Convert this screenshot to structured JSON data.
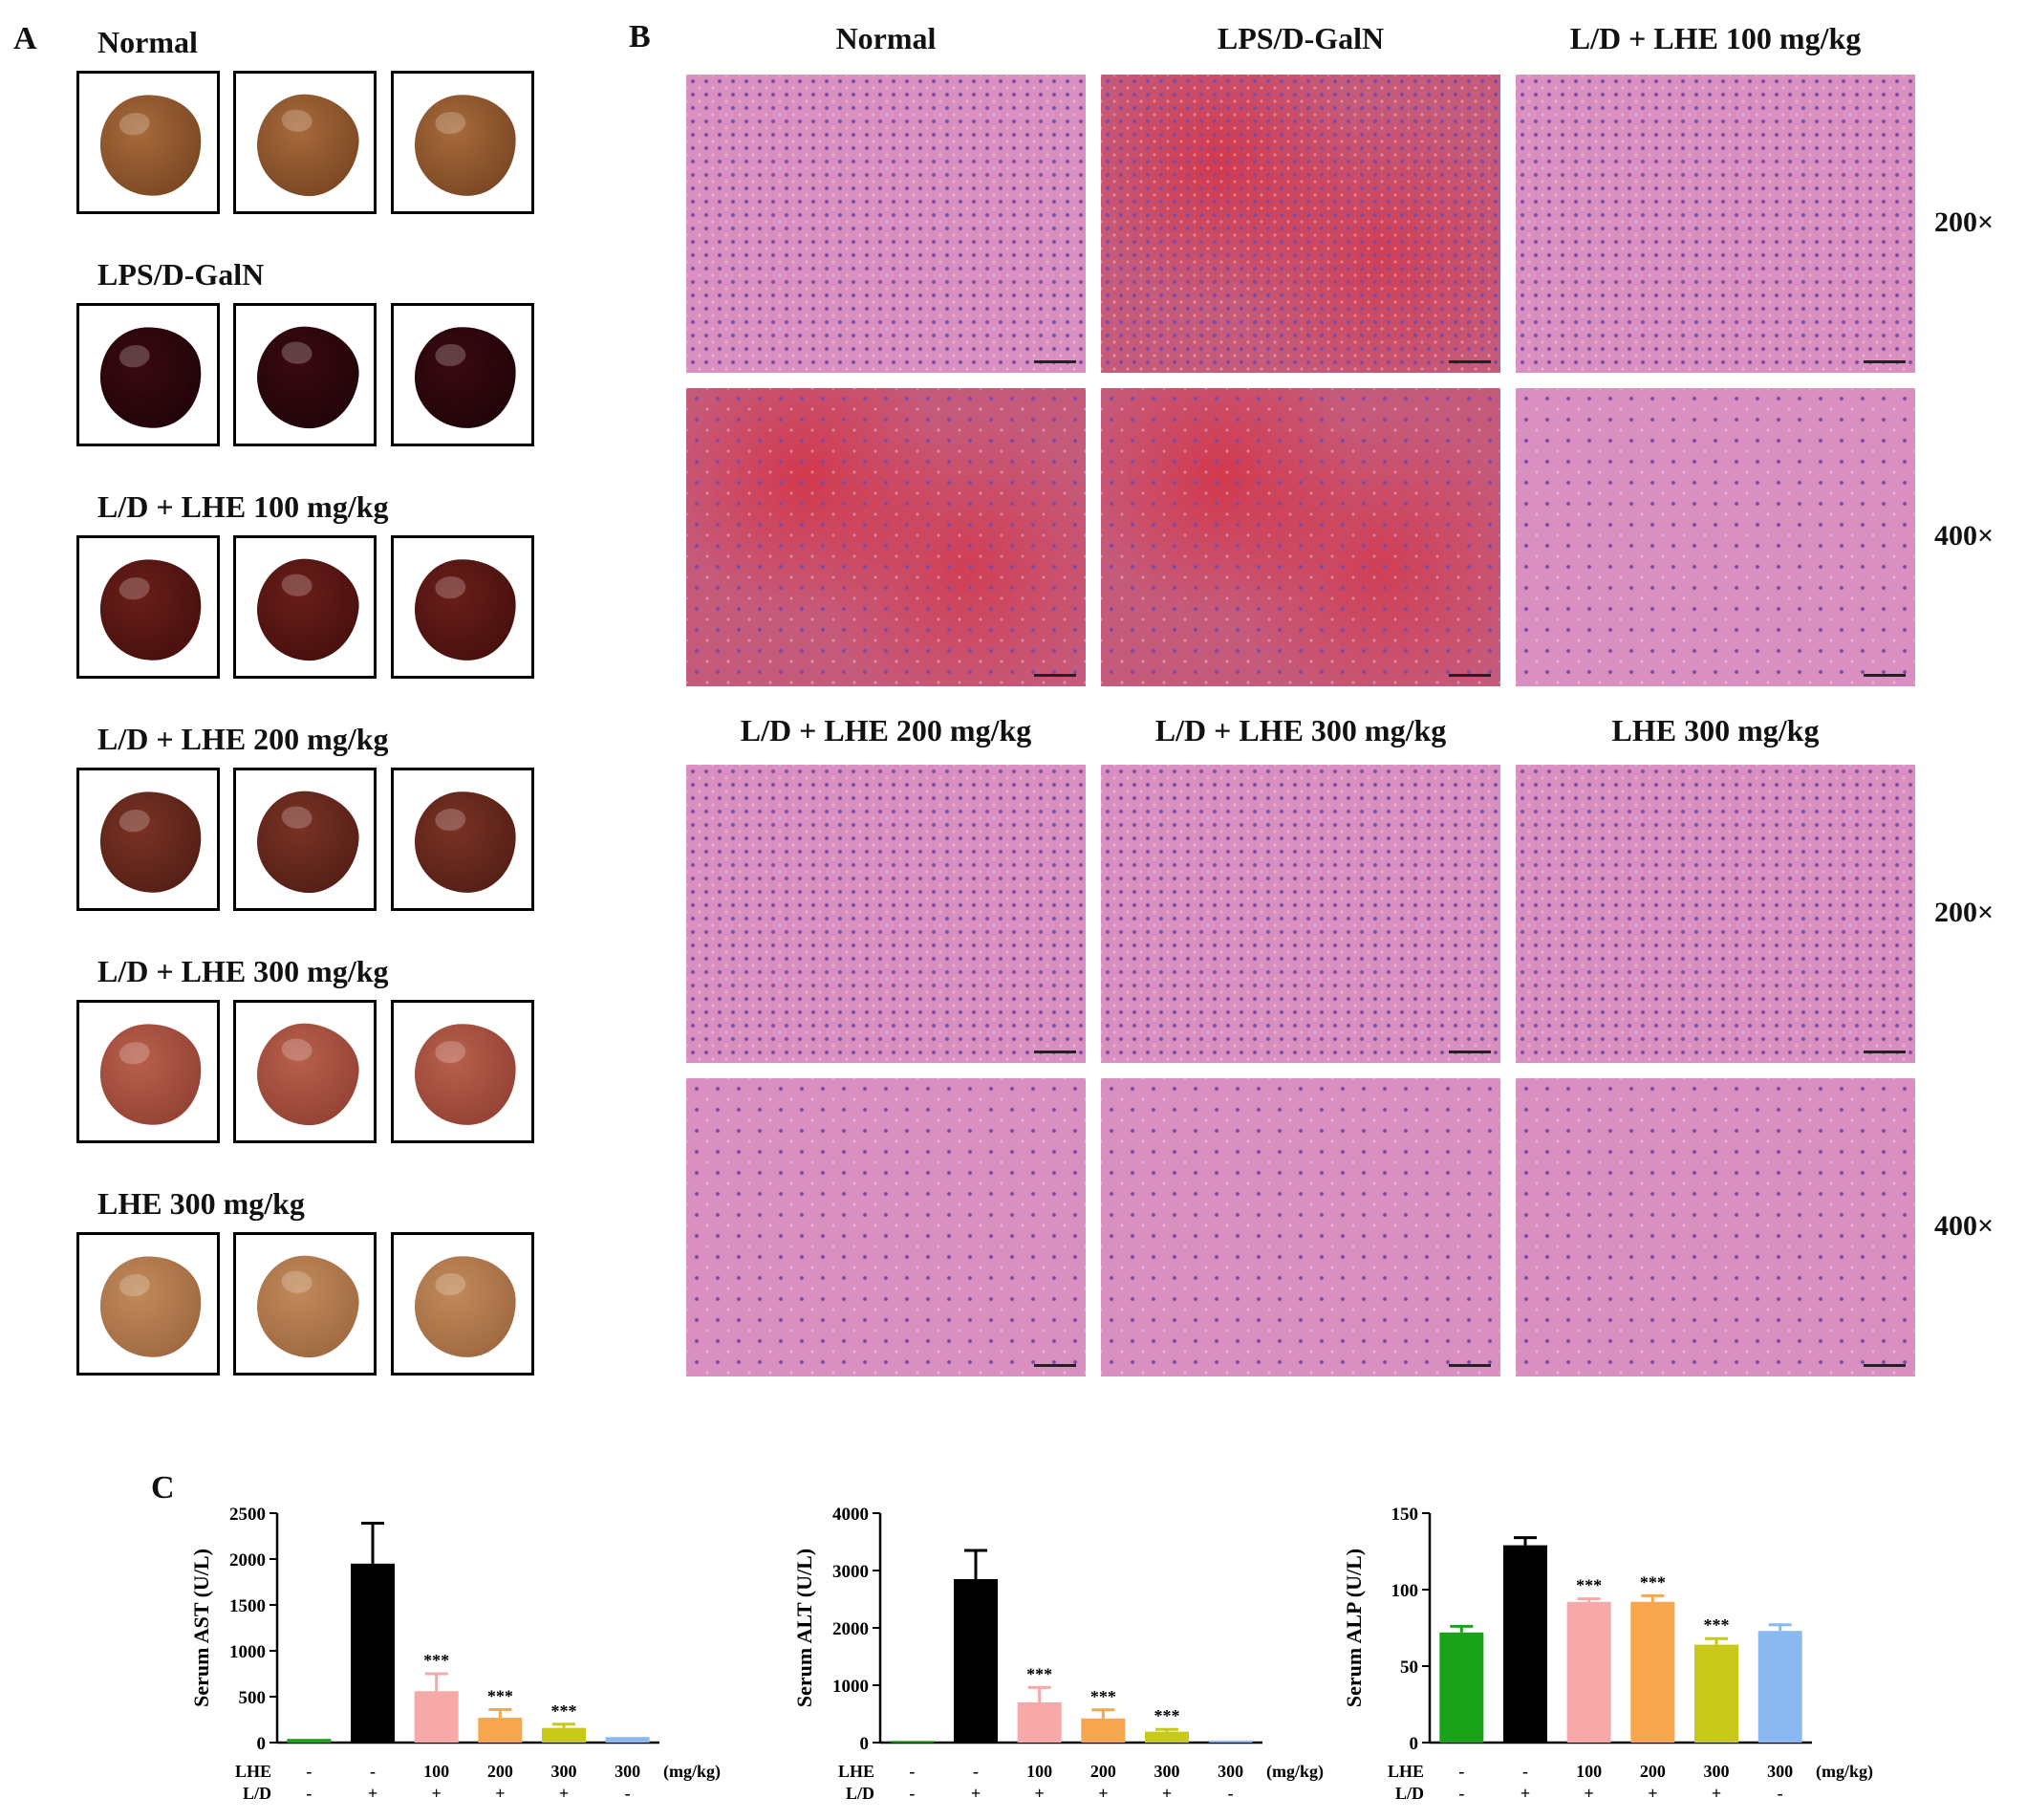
{
  "panel_a": {
    "label": "A",
    "groups": [
      {
        "title": "Normal",
        "color": "#a86a3a",
        "dark": "#6e3e1e"
      },
      {
        "title": "LPS/D-GalN",
        "color": "#3a0a10",
        "dark": "#1a0206"
      },
      {
        "title": "L/D + LHE 100 mg/kg",
        "color": "#6a1e1a",
        "dark": "#3e0c0a"
      },
      {
        "title": "L/D + LHE 200 mg/kg",
        "color": "#7a3224",
        "dark": "#4a1a12"
      },
      {
        "title": "L/D + LHE 300 mg/kg",
        "color": "#b8604c",
        "dark": "#8a3a2e"
      },
      {
        "title": "LHE 300 mg/kg",
        "color": "#c28a5a",
        "dark": "#96603a"
      }
    ]
  },
  "panel_b": {
    "label": "B",
    "top_titles": [
      "Normal",
      "LPS/D-GalN",
      "L/D + LHE 100 mg/kg"
    ],
    "bottom_titles": [
      "L/D + LHE 200 mg/kg",
      "L/D + LHE 300 mg/kg",
      "LHE 300 mg/kg"
    ],
    "magnifications": [
      "200×",
      "400×",
      "200×",
      "400×"
    ],
    "tissue_colors": {
      "normal": "#d98fc0",
      "damaged": "#c65a7a",
      "nuclei": "#7a4aa8"
    }
  },
  "panel_c": {
    "label": "C",
    "row_labels": {
      "lhe": "LHE",
      "ld": "L/D",
      "unit": "(mg/kg)"
    },
    "lhe_values": [
      "-",
      "-",
      "100",
      "200",
      "300",
      "300"
    ],
    "ld_values": [
      "-",
      "+",
      "+",
      "+",
      "+",
      "-"
    ],
    "bar_colors": [
      "#1aa31a",
      "#000000",
      "#f7a8a8",
      "#f8a64e",
      "#c8c81a",
      "#8ab8f0"
    ],
    "significance_mark": "***"
  },
  "chart_data": [
    {
      "type": "bar",
      "ylabel": "Serum AST (U/L)",
      "ylim": [
        0,
        2500
      ],
      "yticks": [
        "0",
        "500",
        "1000",
        "1500",
        "2000",
        "2500"
      ],
      "values": [
        40,
        1950,
        560,
        270,
        160,
        60
      ],
      "errors": [
        0,
        440,
        190,
        90,
        40,
        0
      ],
      "significance": [
        "",
        "",
        "***",
        "***",
        "***",
        ""
      ]
    },
    {
      "type": "bar",
      "ylabel": "Serum ALT (U/L)",
      "ylim": [
        0,
        4000
      ],
      "yticks": [
        "0",
        "1000",
        "2000",
        "3000",
        "4000"
      ],
      "values": [
        30,
        2850,
        700,
        420,
        190,
        35
      ],
      "errors": [
        0,
        500,
        260,
        150,
        40,
        0
      ],
      "significance": [
        "",
        "",
        "***",
        "***",
        "***",
        ""
      ]
    },
    {
      "type": "bar",
      "ylabel": "Serum ALP (U/L)",
      "ylim": [
        0,
        150
      ],
      "yticks": [
        "0",
        "50",
        "100",
        "150"
      ],
      "values": [
        72,
        129,
        92,
        92,
        64,
        73
      ],
      "errors": [
        4,
        5,
        2,
        4,
        4,
        4
      ],
      "significance": [
        "",
        "",
        "***",
        "***",
        "***",
        ""
      ]
    }
  ]
}
